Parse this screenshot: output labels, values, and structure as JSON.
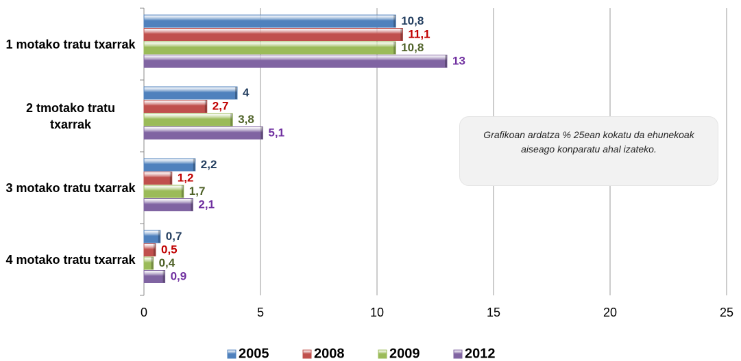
{
  "chart_data": {
    "type": "bar",
    "orientation": "horizontal",
    "categories": [
      "1 motako tratu txarrak",
      "2 tmotako tratu txarrak",
      "3 motako tratu txarrak",
      "4 motako tratu txarrak"
    ],
    "series": [
      {
        "name": "2005",
        "color": "#4f81bd",
        "label_color": "#243f60",
        "values": [
          10.8,
          4,
          2.2,
          0.7
        ],
        "value_labels": [
          "10,8",
          "4",
          "2,2",
          "0,7"
        ]
      },
      {
        "name": "2008",
        "color": "#c0504d",
        "label_color": "#c00000",
        "values": [
          11.1,
          2.7,
          1.2,
          0.5
        ],
        "value_labels": [
          "11,1",
          "2,7",
          "1,2",
          "0,5"
        ]
      },
      {
        "name": "2009",
        "color": "#9bbb59",
        "label_color": "#4f6228",
        "values": [
          10.8,
          3.8,
          1.7,
          0.4
        ],
        "value_labels": [
          "10,8",
          "3,8",
          "1,7",
          "0,4"
        ]
      },
      {
        "name": "2012",
        "color": "#8064a2",
        "label_color": "#7030a0",
        "values": [
          13,
          5.1,
          2.1,
          0.9
        ],
        "value_labels": [
          "13",
          "5,1",
          "2,1",
          "0,9"
        ]
      }
    ],
    "xlim": [
      0,
      25
    ],
    "xticks": [
      0,
      5,
      10,
      15,
      20,
      25
    ],
    "grid": true,
    "legend": "bottom",
    "annotation": "Grafikoan ardatza % 25ean kokatu da ehunekoak  aiseago konparatu ahal izateko."
  }
}
